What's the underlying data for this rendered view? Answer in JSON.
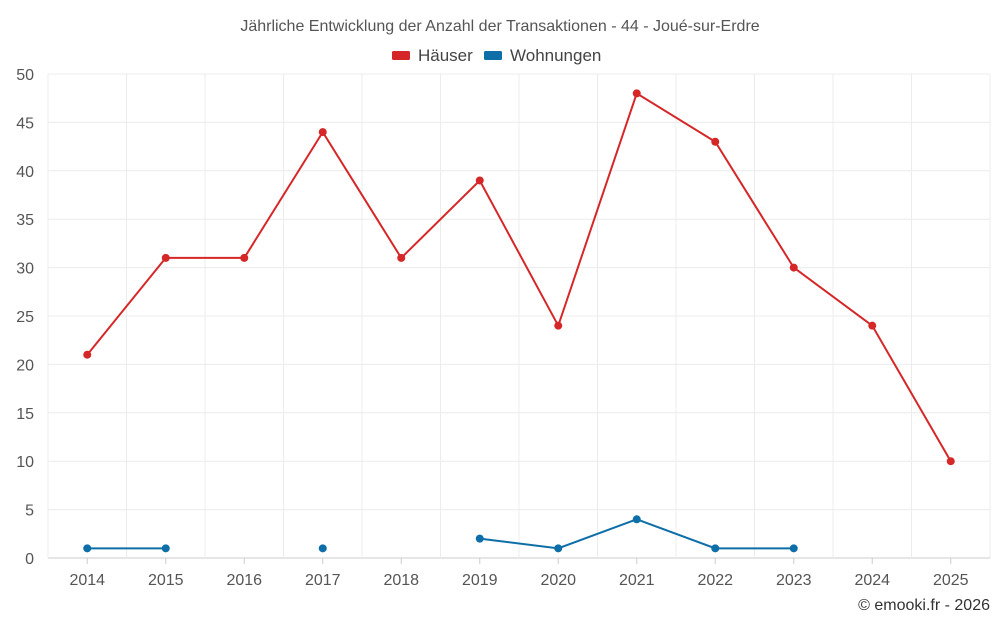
{
  "chart_data": {
    "type": "line",
    "title": "Jährliche Entwicklung der Anzahl der Transaktionen - 44 - Joué-sur-Erdre",
    "categories": [
      "2014",
      "2015",
      "2016",
      "2017",
      "2018",
      "2019",
      "2020",
      "2021",
      "2022",
      "2023",
      "2024",
      "2025"
    ],
    "series": [
      {
        "name": "Häuser",
        "color": "#d62728",
        "values": [
          21,
          31,
          31,
          44,
          31,
          39,
          24,
          48,
          43,
          30,
          24,
          10
        ]
      },
      {
        "name": "Wohnungen",
        "color": "#0e6ea8",
        "values": [
          1,
          1,
          null,
          1,
          null,
          2,
          1,
          4,
          1,
          1,
          null,
          null
        ]
      }
    ],
    "ylim": [
      0,
      50
    ],
    "yticks": [
      0,
      5,
      10,
      15,
      20,
      25,
      30,
      35,
      40,
      45,
      50
    ],
    "grid": true,
    "legend_position": "top-center",
    "credit": "© emooki.fr - 2026"
  }
}
